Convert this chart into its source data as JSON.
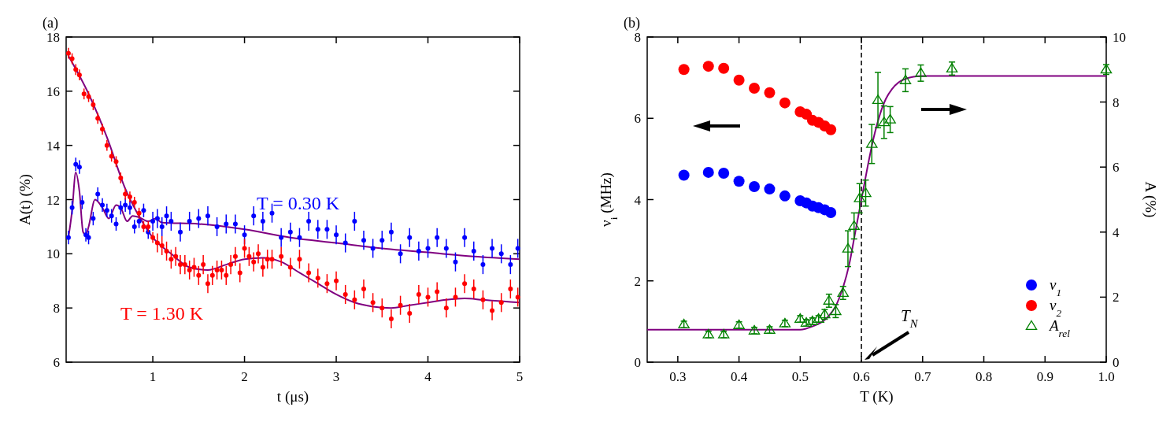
{
  "chart_data": [
    {
      "type": "scatter",
      "title": "(a)",
      "xlabel": "t (μs)",
      "ylabel": "A(t) (%)",
      "xlim": [
        0.055,
        5
      ],
      "xticks": [
        1,
        2,
        3,
        4,
        5
      ],
      "ylim": [
        6,
        18
      ],
      "yticks": [
        6,
        8,
        10,
        12,
        14,
        16,
        18
      ],
      "grid": false,
      "legend": false,
      "marker": "circle",
      "series": [
        {
          "name": "T = 0.30 K",
          "color": "#0000ff",
          "x": [
            0.08,
            0.12,
            0.16,
            0.2,
            0.23,
            0.27,
            0.3,
            0.35,
            0.4,
            0.45,
            0.5,
            0.55,
            0.6,
            0.65,
            0.7,
            0.75,
            0.8,
            0.85,
            0.9,
            0.95,
            1.0,
            1.05,
            1.1,
            1.15,
            1.2,
            1.3,
            1.4,
            1.5,
            1.6,
            1.7,
            1.8,
            1.9,
            2.0,
            2.1,
            2.2,
            2.3,
            2.4,
            2.5,
            2.6,
            2.7,
            2.8,
            2.9,
            3.0,
            3.1,
            3.2,
            3.3,
            3.4,
            3.5,
            3.6,
            3.7,
            3.8,
            3.9,
            4.0,
            4.1,
            4.2,
            4.3,
            4.4,
            4.5,
            4.6,
            4.7,
            4.8,
            4.9,
            4.98
          ],
          "values": [
            10.6,
            11.7,
            13.3,
            13.2,
            11.9,
            10.7,
            10.6,
            11.3,
            12.2,
            11.8,
            11.6,
            11.4,
            11.1,
            11.7,
            11.8,
            11.7,
            11.0,
            11.2,
            11.6,
            10.8,
            11.2,
            11.3,
            11.0,
            11.4,
            11.2,
            10.8,
            11.2,
            11.3,
            11.4,
            11.0,
            11.1,
            11.1,
            10.7,
            11.4,
            11.2,
            11.5,
            10.6,
            10.8,
            10.6,
            11.2,
            10.9,
            10.9,
            10.7,
            10.4,
            11.2,
            10.5,
            10.2,
            10.5,
            10.8,
            10.0,
            10.6,
            10.1,
            10.2,
            10.6,
            10.2,
            9.7,
            10.6,
            10.1,
            9.6,
            10.2,
            10.0,
            9.6,
            10.2
          ],
          "errors": [
            0.25,
            0.25,
            0.25,
            0.25,
            0.25,
            0.25,
            0.25,
            0.25,
            0.25,
            0.25,
            0.25,
            0.25,
            0.25,
            0.25,
            0.25,
            0.25,
            0.25,
            0.25,
            0.25,
            0.25,
            0.35,
            0.35,
            0.35,
            0.35,
            0.35,
            0.35,
            0.35,
            0.35,
            0.35,
            0.35,
            0.35,
            0.35,
            0.35,
            0.35,
            0.35,
            0.35,
            0.35,
            0.35,
            0.35,
            0.35,
            0.35,
            0.35,
            0.35,
            0.35,
            0.35,
            0.35,
            0.35,
            0.35,
            0.35,
            0.35,
            0.35,
            0.35,
            0.35,
            0.35,
            0.35,
            0.35,
            0.35,
            0.35,
            0.35,
            0.35,
            0.35,
            0.35,
            0.35
          ]
        },
        {
          "name": "T = 1.30 K",
          "color": "#ff0000",
          "x": [
            0.08,
            0.12,
            0.16,
            0.2,
            0.25,
            0.3,
            0.35,
            0.4,
            0.45,
            0.5,
            0.55,
            0.6,
            0.65,
            0.7,
            0.75,
            0.8,
            0.85,
            0.9,
            0.95,
            1.0,
            1.05,
            1.1,
            1.15,
            1.2,
            1.25,
            1.3,
            1.35,
            1.4,
            1.45,
            1.5,
            1.55,
            1.6,
            1.65,
            1.7,
            1.75,
            1.8,
            1.85,
            1.9,
            1.95,
            2.0,
            2.05,
            2.1,
            2.15,
            2.2,
            2.25,
            2.3,
            2.4,
            2.5,
            2.6,
            2.7,
            2.8,
            2.9,
            3.0,
            3.1,
            3.2,
            3.3,
            3.4,
            3.5,
            3.6,
            3.7,
            3.8,
            3.9,
            4.0,
            4.1,
            4.2,
            4.3,
            4.4,
            4.5,
            4.6,
            4.7,
            4.8,
            4.9,
            4.98
          ],
          "values": [
            17.4,
            17.2,
            16.8,
            16.6,
            15.9,
            15.8,
            15.5,
            15.0,
            14.6,
            14.0,
            13.6,
            13.4,
            12.8,
            12.2,
            12.1,
            11.9,
            11.5,
            11.0,
            11.0,
            10.6,
            10.4,
            10.3,
            10.1,
            9.8,
            9.9,
            9.6,
            9.6,
            9.4,
            9.5,
            9.2,
            9.6,
            8.9,
            9.2,
            9.4,
            9.4,
            9.2,
            9.6,
            9.9,
            9.3,
            10.2,
            9.9,
            9.7,
            10.0,
            9.5,
            9.8,
            9.8,
            9.9,
            9.5,
            9.8,
            9.3,
            9.1,
            8.9,
            9.0,
            8.5,
            8.3,
            8.7,
            8.2,
            8.0,
            7.6,
            8.1,
            7.8,
            8.5,
            8.4,
            8.6,
            8.0,
            8.4,
            8.9,
            8.7,
            8.3,
            7.9,
            8.2,
            8.7,
            8.4
          ],
          "errors": [
            0.2,
            0.2,
            0.2,
            0.2,
            0.2,
            0.2,
            0.2,
            0.2,
            0.2,
            0.2,
            0.2,
            0.2,
            0.2,
            0.2,
            0.2,
            0.2,
            0.2,
            0.2,
            0.2,
            0.2,
            0.35,
            0.35,
            0.35,
            0.35,
            0.35,
            0.35,
            0.35,
            0.35,
            0.35,
            0.35,
            0.35,
            0.35,
            0.35,
            0.35,
            0.35,
            0.35,
            0.35,
            0.35,
            0.35,
            0.35,
            0.35,
            0.35,
            0.35,
            0.35,
            0.35,
            0.35,
            0.35,
            0.35,
            0.35,
            0.35,
            0.35,
            0.35,
            0.35,
            0.35,
            0.35,
            0.35,
            0.35,
            0.35,
            0.35,
            0.35,
            0.35,
            0.35,
            0.35,
            0.35,
            0.35,
            0.35,
            0.35,
            0.35,
            0.35,
            0.35,
            0.35,
            0.35,
            0.35
          ]
        },
        {
          "type": "line",
          "color": "#800080",
          "marker": "none",
          "x": [
            0.08,
            0.12,
            0.16,
            0.2,
            0.24,
            0.27,
            0.3,
            0.37,
            0.45,
            0.52,
            0.6,
            0.65,
            0.72,
            0.78,
            0.85,
            0.95,
            1.03,
            1.1,
            1.5,
            2.0,
            2.5,
            3.0,
            3.5,
            4.0,
            4.5,
            5.0
          ],
          "values": [
            10.6,
            11.6,
            13.0,
            12.3,
            10.8,
            10.7,
            11.0,
            12.0,
            11.7,
            11.3,
            11.8,
            11.7,
            11.2,
            11.4,
            11.35,
            11.2,
            11.3,
            11.15,
            11.1,
            10.9,
            10.6,
            10.4,
            10.2,
            10.05,
            9.9,
            9.8
          ]
        },
        {
          "type": "line",
          "color": "#800080",
          "marker": "none",
          "x": [
            0.08,
            0.3,
            0.5,
            0.7,
            0.9,
            1.0,
            1.2,
            1.4,
            1.6,
            1.8,
            2.0,
            2.2,
            2.4,
            2.6,
            2.8,
            3.0,
            3.2,
            3.4,
            3.6,
            3.8,
            4.0,
            4.2,
            4.4,
            4.6,
            4.8,
            5.0
          ],
          "values": [
            17.3,
            15.9,
            14.3,
            12.4,
            11.1,
            10.6,
            10.0,
            9.5,
            9.4,
            9.6,
            9.8,
            9.85,
            9.7,
            9.3,
            8.9,
            8.5,
            8.2,
            8.05,
            8.0,
            8.1,
            8.2,
            8.3,
            8.35,
            8.3,
            8.25,
            8.2
          ]
        }
      ]
    },
    {
      "type": "scatter",
      "title": "(b)",
      "xlabel": "T (K)",
      "ylabel": "ν$_{i}$ (MHz)",
      "y2label": "A (%)",
      "xlim": [
        0.25,
        1.0
      ],
      "xticks": [
        0.3,
        0.4,
        0.5,
        0.6,
        0.7,
        0.8,
        0.9,
        {
          "value": 1,
          "label": "1.0"
        }
      ],
      "ylim": [
        0,
        8
      ],
      "yticks": [
        0,
        2,
        4,
        6,
        8
      ],
      "y2lim": [
        0,
        10
      ],
      "y2ticks": [
        0,
        2,
        4,
        6,
        8,
        10
      ],
      "grid": false,
      "legend": "bottom right",
      "ref_lines": [
        {
          "axis": "x",
          "value": 0.6,
          "color": "#000000",
          "line_style": "dashed"
        }
      ],
      "annotations": [
        "T$_{N}$"
      ],
      "series": [
        {
          "name": "ν$_{1}$",
          "color": "#0000ff",
          "marker": "circle",
          "x": [
            0.31,
            0.35,
            0.375,
            0.4,
            0.425,
            0.45,
            0.475,
            0.5,
            0.51,
            0.52,
            0.53,
            0.54,
            0.55
          ],
          "values": [
            4.6,
            4.67,
            4.65,
            4.45,
            4.32,
            4.26,
            4.09,
            3.97,
            3.92,
            3.84,
            3.8,
            3.75,
            3.68
          ]
        },
        {
          "name": "ν$_{2}$",
          "color": "#ff0000",
          "marker": "circle",
          "x": [
            0.31,
            0.35,
            0.375,
            0.4,
            0.425,
            0.45,
            0.475,
            0.5,
            0.51,
            0.52,
            0.53,
            0.54,
            0.55
          ],
          "values": [
            7.2,
            7.28,
            7.23,
            6.94,
            6.74,
            6.63,
            6.38,
            6.16,
            6.1,
            5.95,
            5.9,
            5.81,
            5.72
          ]
        },
        {
          "name": "A$_{rel}$",
          "color": "#008000",
          "marker": "triangle",
          "axis": "y2",
          "x": [
            0.31,
            0.35,
            0.375,
            0.4,
            0.425,
            0.45,
            0.475,
            0.5,
            0.51,
            0.52,
            0.53,
            0.54,
            0.547,
            0.558,
            0.57,
            0.578,
            0.588,
            0.597,
            0.607,
            0.617,
            0.627,
            0.637,
            0.647,
            0.672,
            0.697,
            0.748,
            1.0
          ],
          "values": [
            1.16,
            0.85,
            0.85,
            1.14,
            0.97,
            0.99,
            1.19,
            1.33,
            1.21,
            1.26,
            1.33,
            1.47,
            1.89,
            1.57,
            2.13,
            3.49,
            4.19,
            5.04,
            5.2,
            6.71,
            8.06,
            7.38,
            7.46,
            8.67,
            8.89,
            9.03,
            9.0
          ],
          "errors": [
            0.1,
            0.1,
            0.1,
            0.1,
            0.1,
            0.1,
            0.1,
            0.1,
            0.1,
            0.1,
            0.1,
            0.15,
            0.2,
            0.2,
            0.2,
            0.55,
            0.4,
            0.45,
            0.4,
            0.6,
            0.85,
            0.5,
            0.4,
            0.35,
            0.25,
            0.2,
            0.15
          ]
        },
        {
          "type": "line",
          "color": "#800080",
          "marker": "none",
          "axis": "y2",
          "x": [
            0.25,
            0.5,
            0.52,
            0.54,
            0.56,
            0.57,
            0.58,
            0.59,
            0.6,
            0.61,
            0.62,
            0.63,
            0.64,
            0.65,
            0.67,
            0.7,
            0.75,
            1.0
          ],
          "values": [
            1.0,
            1.0,
            1.1,
            1.3,
            1.8,
            2.3,
            3.0,
            4.0,
            5.0,
            6.0,
            6.9,
            7.6,
            8.1,
            8.4,
            8.7,
            8.8,
            8.8,
            8.8
          ]
        }
      ]
    }
  ]
}
